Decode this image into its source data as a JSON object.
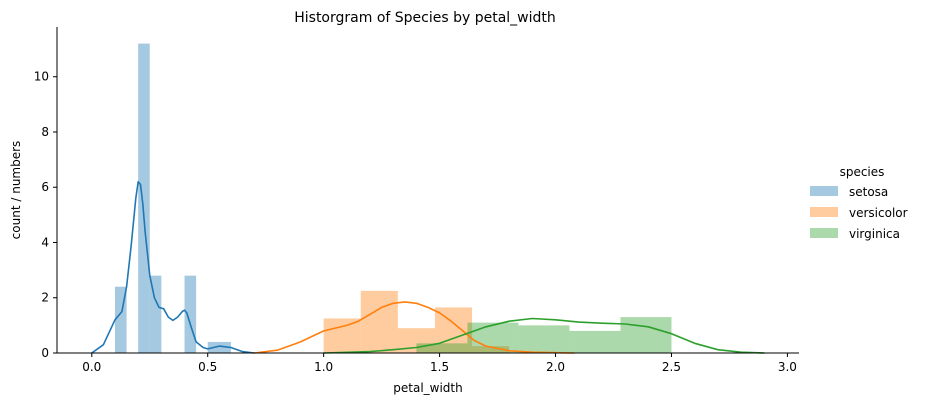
{
  "chart_data": {
    "type": "histogram",
    "title": "Historgram of Species by petal_width",
    "xlabel": "petal_width",
    "ylabel": "count / numbers",
    "xlim": [
      -0.15,
      3.05
    ],
    "ylim": [
      0,
      11.8
    ],
    "xticks": [
      0.0,
      0.5,
      1.0,
      1.5,
      2.0,
      2.5,
      3.0
    ],
    "xtick_labels": [
      "0.0",
      "0.5",
      "1.0",
      "1.5",
      "2.0",
      "2.5",
      "3.0"
    ],
    "yticks": [
      0,
      2,
      4,
      6,
      8,
      10
    ],
    "ytick_labels": [
      "0",
      "2",
      "4",
      "6",
      "8",
      "10"
    ],
    "grid": false,
    "legend": {
      "title": "species",
      "placement": "right",
      "entries": [
        "setosa",
        "versicolor",
        "virginica"
      ]
    },
    "series": [
      {
        "name": "setosa",
        "color": "#1f77b4",
        "bins": [
          {
            "x0": 0.1,
            "x1": 0.15,
            "count": 2.4
          },
          {
            "x0": 0.15,
            "x1": 0.2,
            "count": 0
          },
          {
            "x0": 0.2,
            "x1": 0.25,
            "count": 11.2
          },
          {
            "x0": 0.25,
            "x1": 0.3,
            "count": 2.8
          },
          {
            "x0": 0.3,
            "x1": 0.35,
            "count": 0
          },
          {
            "x0": 0.35,
            "x1": 0.4,
            "count": 0
          },
          {
            "x0": 0.4,
            "x1": 0.45,
            "count": 2.8
          },
          {
            "x0": 0.45,
            "x1": 0.5,
            "count": 0
          },
          {
            "x0": 0.5,
            "x1": 0.6,
            "count": 0.4
          }
        ],
        "kde": {
          "x": [
            0.0,
            0.05,
            0.1,
            0.13,
            0.15,
            0.17,
            0.19,
            0.2,
            0.21,
            0.22,
            0.23,
            0.25,
            0.27,
            0.29,
            0.31,
            0.33,
            0.35,
            0.37,
            0.39,
            0.4,
            0.41,
            0.43,
            0.45,
            0.48,
            0.5,
            0.55,
            0.6,
            0.65,
            0.7
          ],
          "y": [
            0.0,
            0.3,
            1.2,
            1.5,
            2.4,
            3.9,
            5.6,
            6.2,
            6.1,
            5.4,
            4.4,
            2.8,
            2.0,
            1.65,
            1.6,
            1.3,
            1.18,
            1.3,
            1.5,
            1.55,
            1.45,
            0.9,
            0.4,
            0.2,
            0.15,
            0.25,
            0.2,
            0.05,
            0.0
          ]
        }
      },
      {
        "name": "versicolor",
        "color": "#ff7f0e",
        "bins": [
          {
            "x0": 1.0,
            "x1": 1.16,
            "count": 1.25
          },
          {
            "x0": 1.16,
            "x1": 1.32,
            "count": 2.25
          },
          {
            "x0": 1.32,
            "x1": 1.48,
            "count": 0.9
          },
          {
            "x0": 1.48,
            "x1": 1.64,
            "count": 1.65
          },
          {
            "x0": 1.64,
            "x1": 1.8,
            "count": 0.25
          }
        ],
        "kde": {
          "x": [
            0.7,
            0.8,
            0.9,
            1.0,
            1.05,
            1.1,
            1.15,
            1.2,
            1.25,
            1.3,
            1.35,
            1.4,
            1.45,
            1.5,
            1.55,
            1.6,
            1.65,
            1.7,
            1.8,
            1.9,
            2.0,
            2.08
          ],
          "y": [
            0.0,
            0.1,
            0.4,
            0.8,
            0.9,
            1.0,
            1.15,
            1.4,
            1.65,
            1.8,
            1.85,
            1.8,
            1.65,
            1.45,
            1.15,
            0.8,
            0.45,
            0.25,
            0.08,
            0.03,
            0.01,
            0.0
          ]
        }
      },
      {
        "name": "virginica",
        "color": "#2ca02c",
        "bins": [
          {
            "x0": 1.4,
            "x1": 1.62,
            "count": 0.35
          },
          {
            "x0": 1.62,
            "x1": 1.84,
            "count": 1.1
          },
          {
            "x0": 1.84,
            "x1": 2.06,
            "count": 1.0
          },
          {
            "x0": 2.06,
            "x1": 2.28,
            "count": 0.8
          },
          {
            "x0": 2.28,
            "x1": 2.5,
            "count": 1.3
          }
        ],
        "kde": {
          "x": [
            1.0,
            1.2,
            1.3,
            1.4,
            1.5,
            1.6,
            1.7,
            1.8,
            1.9,
            2.0,
            2.1,
            2.2,
            2.3,
            2.4,
            2.5,
            2.6,
            2.7,
            2.8,
            2.9
          ],
          "y": [
            0.0,
            0.05,
            0.12,
            0.2,
            0.35,
            0.65,
            0.95,
            1.15,
            1.25,
            1.2,
            1.12,
            1.08,
            1.05,
            0.95,
            0.7,
            0.35,
            0.12,
            0.03,
            0.0
          ]
        }
      }
    ]
  }
}
